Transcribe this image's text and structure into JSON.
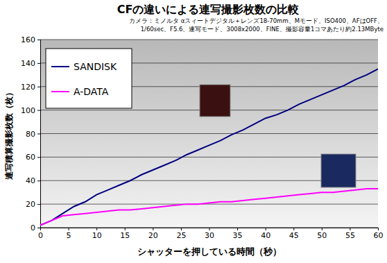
{
  "chart_data": {
    "type": "line",
    "title": "CFの違いによる連写撮影枚数の比較",
    "subtitle": [
      "カメラ：ミノルタ αスィートデジタル＋レンズ18-70mm、Mモード、ISO400、AFはOFF、",
      "1/60sec、F5.6、連写モード、3008x2000、FINE、撮影容量1コマあたり約2.13MByte"
    ],
    "x_label": "シャッターを押している時間（秒）",
    "y_label": "連写積算撮影枚数（枚）",
    "x": [
      0,
      2,
      4,
      6,
      8,
      10,
      12,
      14,
      16,
      18,
      20,
      22,
      24,
      26,
      28,
      30,
      32,
      34,
      36,
      38,
      40,
      42,
      44,
      46,
      48,
      50,
      52,
      54,
      56,
      58,
      60
    ],
    "series": [
      {
        "name": "SANDISK",
        "color": "#000080",
        "values": [
          2,
          6,
          12,
          18,
          22,
          28,
          32,
          36,
          40,
          45,
          49,
          53,
          57,
          62,
          66,
          70,
          74,
          79,
          83,
          88,
          93,
          96,
          100,
          105,
          109,
          113,
          117,
          121,
          126,
          130,
          135
        ]
      },
      {
        "name": "A-DATA",
        "color": "#ff00ff",
        "values": [
          2,
          6,
          10,
          11,
          12,
          13,
          14,
          15,
          15,
          16,
          17,
          18,
          19,
          20,
          20,
          21,
          22,
          22,
          23,
          24,
          25,
          26,
          27,
          28,
          29,
          30,
          30,
          31,
          32,
          33,
          33
        ]
      }
    ],
    "xlim": [
      0,
      60
    ],
    "xticks": [
      0,
      5,
      10,
      15,
      20,
      25,
      30,
      35,
      40,
      45,
      50,
      55,
      60
    ],
    "ylim": [
      0,
      160
    ],
    "yticks": [
      0,
      20,
      40,
      60,
      80,
      100,
      120,
      140,
      160
    ],
    "grid": true,
    "legend": "upper left"
  }
}
